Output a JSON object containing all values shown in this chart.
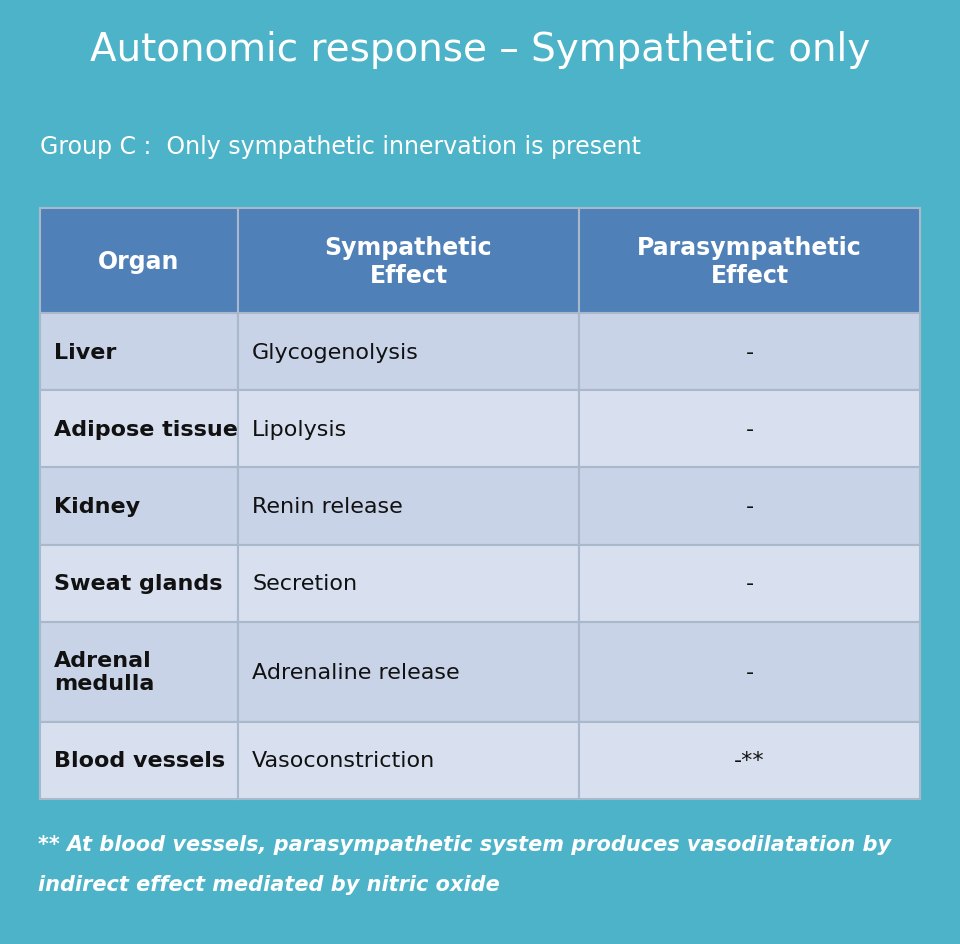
{
  "title": "Autonomic response – Sympathetic only",
  "subtitle": "Group C :  Only sympathetic innervation is present",
  "bg_color": "#4db3c8",
  "title_bg_color": "#3a9db0",
  "header_color": "#5080b8",
  "row_color_odd": "#c8d3e8",
  "row_color_even": "#d8e0ef",
  "table_border_color": "#aab8cc",
  "col_headers": [
    "Organ",
    "Sympathetic\nEffect",
    "Parasympathetic\nEffect"
  ],
  "rows": [
    [
      "Liver",
      "Glycogenolysis",
      "-"
    ],
    [
      "Adipose tissue",
      "Lipolysis",
      "-"
    ],
    [
      "Kidney",
      "Renin release",
      "-"
    ],
    [
      "Sweat glands",
      "Secretion",
      "-"
    ],
    [
      "Adrenal\nmedulla",
      "Adrenaline release",
      "-"
    ],
    [
      "Blood vessels",
      "Vasoconstriction",
      "-**"
    ]
  ],
  "footnote_line1": "** At blood vessels, parasympathetic system produces vasodilatation by",
  "footnote_line2": "indirect effect mediated by nitric oxide",
  "title_fontsize": 28,
  "subtitle_fontsize": 17,
  "header_fontsize": 17,
  "cell_fontsize": 16,
  "footnote_fontsize": 15
}
